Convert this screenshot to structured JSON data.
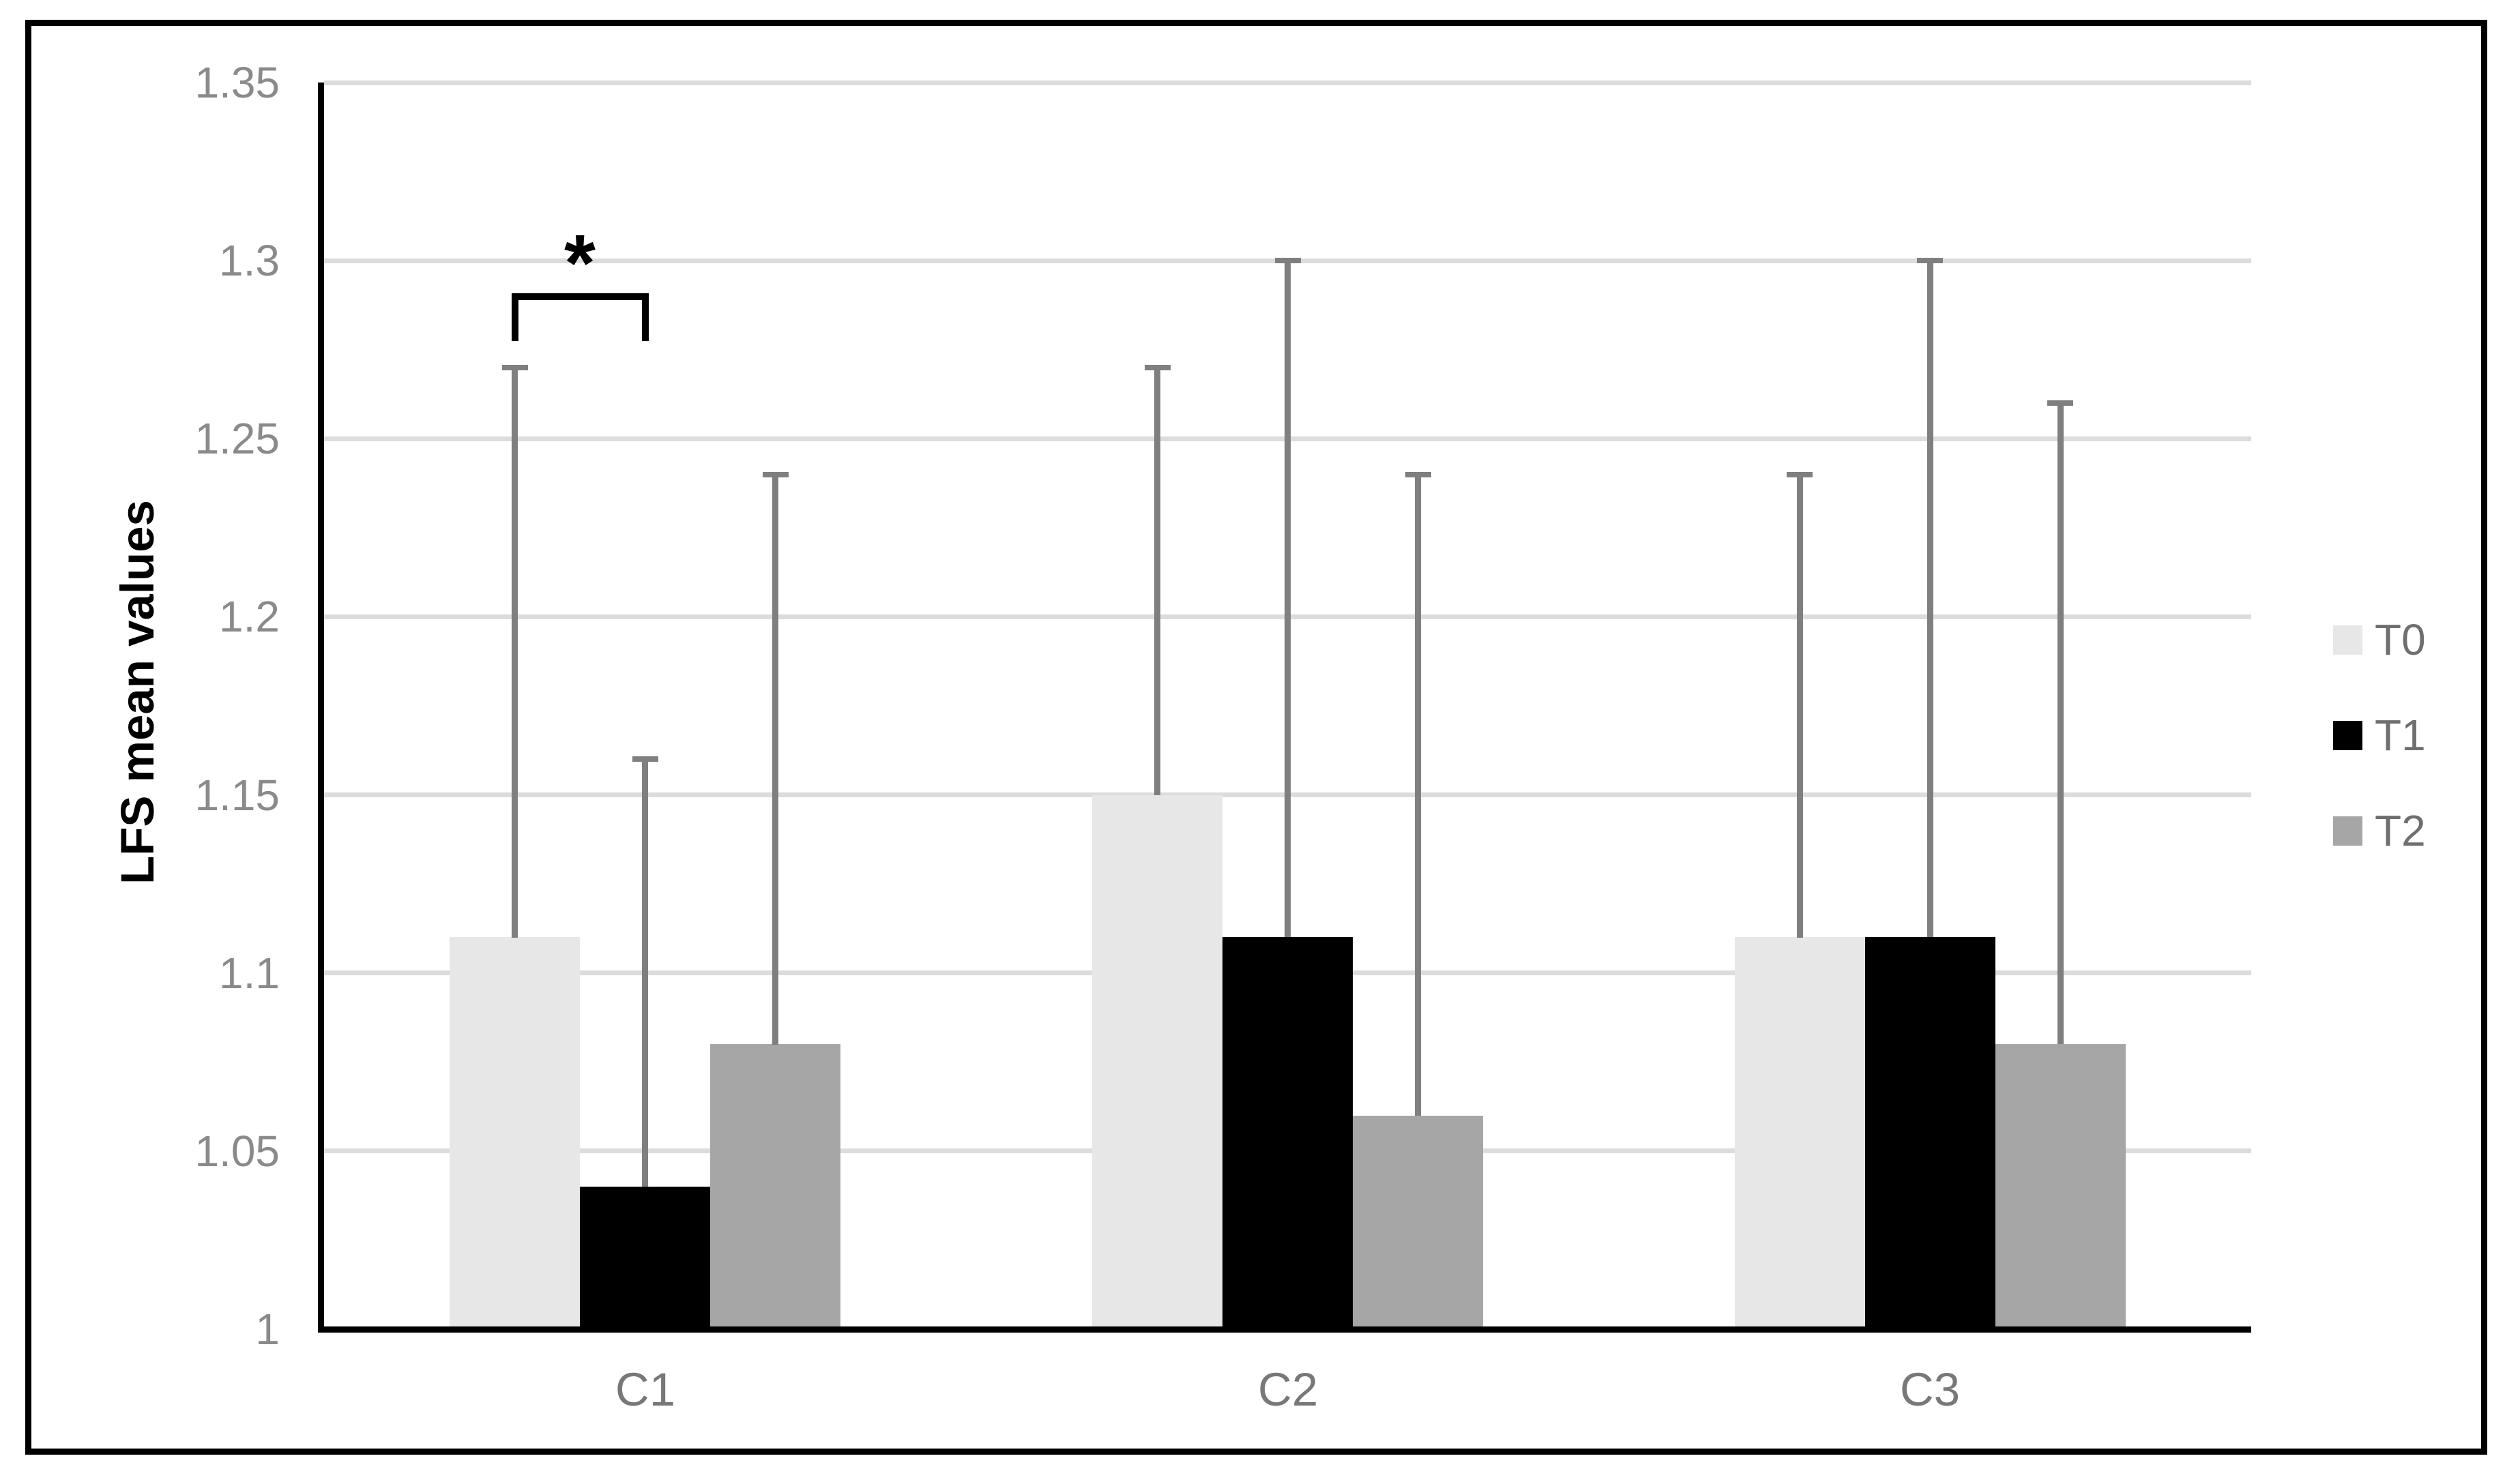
{
  "chart_data": {
    "type": "bar",
    "title": "",
    "xlabel": "",
    "ylabel": "LFS mean values",
    "categories": [
      "C1",
      "C2",
      "C3"
    ],
    "series": [
      {
        "name": "T0",
        "color": "#e7e7e7",
        "values": [
          1.11,
          1.15,
          1.11
        ],
        "error_upper": [
          1.27,
          1.27,
          1.24
        ]
      },
      {
        "name": "T1",
        "color": "#000000",
        "values": [
          1.04,
          1.11,
          1.11
        ],
        "error_upper": [
          1.16,
          1.3,
          1.3
        ]
      },
      {
        "name": "T2",
        "color": "#a6a6a6",
        "values": [
          1.08,
          1.06,
          1.08
        ],
        "error_upper": [
          1.24,
          1.24,
          1.26
        ]
      }
    ],
    "ylim": [
      1,
      1.35
    ],
    "ytick_step": 0.05,
    "yticks": [
      "1",
      "1.05",
      "1.1",
      "1.15",
      "1.2",
      "1.25",
      "1.3",
      "1.35"
    ],
    "grid": true,
    "legend_position": "right",
    "annotation": {
      "symbol": "*",
      "between": [
        "C1 T0",
        "C1 T1"
      ]
    }
  },
  "colors": {
    "gridline": "#dcdcdc",
    "axis": "#000000",
    "error_bar": "#7f7f7f",
    "tick_text": "#8a8a8a",
    "legend_text": "#6f6f6f",
    "frame_border": "#000000"
  }
}
